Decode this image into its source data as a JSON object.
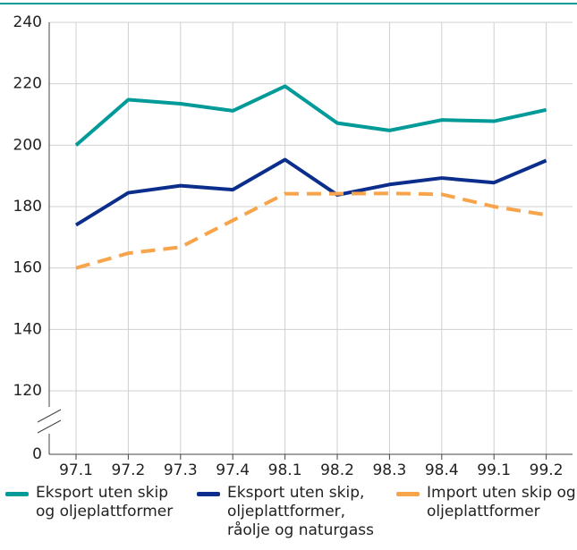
{
  "chart_data": {
    "type": "line",
    "categories": [
      "97.1",
      "97.2",
      "97.3",
      "97.4",
      "98.1",
      "98.2",
      "98.3",
      "98.4",
      "99.1",
      "99.2"
    ],
    "series": [
      {
        "name": "Eksport uten skip og oljeplattformer",
        "color": "#009a98",
        "dash": false,
        "values": [
          200,
          214.8,
          213.5,
          211.2,
          219.2,
          207.2,
          204.8,
          208.2,
          207.8,
          211.5
        ]
      },
      {
        "name": "Eksport uten skip, oljeplattformer, råolje og naturgass",
        "color": "#0b2e8c",
        "dash": false,
        "values": [
          174,
          184.5,
          186.8,
          185.5,
          195.3,
          183.8,
          187.2,
          189.3,
          187.8,
          195
        ]
      },
      {
        "name": "Import uten skip og oljeplattformer",
        "color": "#f7a44a",
        "dash": true,
        "values": [
          160,
          164.8,
          166.8,
          175.5,
          184.2,
          184.2,
          184.3,
          184,
          180,
          177.3
        ]
      }
    ],
    "ylim": [
      0,
      240
    ],
    "yticks": [
      0,
      120,
      140,
      160,
      180,
      200,
      220,
      240
    ],
    "axis_break": [
      0,
      120
    ],
    "grid": true
  }
}
